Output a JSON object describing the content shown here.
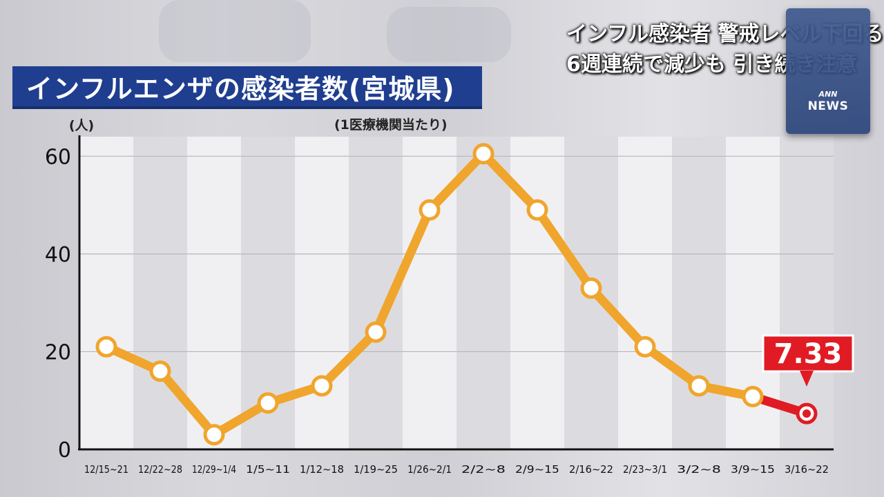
{
  "headline": {
    "line1": "インフル感染者 警戒レベル下回る",
    "line2": "6週連続で減少も 引き続き注意"
  },
  "logo": {
    "line1": "ANN",
    "line2": "NEWS"
  },
  "colors": {
    "banner": "#1f3e8f",
    "line": "#f0a52d",
    "highlight": "#e01b24"
  },
  "chart_data": {
    "type": "line",
    "title": "インフルエンザの感染者数(宮城県)",
    "subtitle": "(1医療機関当たり)",
    "ylabel": "(人)",
    "xlabel": "",
    "ylim": [
      0,
      64
    ],
    "yticks": [
      0,
      20,
      40,
      60
    ],
    "grid": true,
    "categories": [
      "12/15~21",
      "12/22~28",
      "12/29~1/4",
      "1/5~11",
      "1/12~18",
      "1/19~25",
      "1/26~2/1",
      "2/2~8",
      "2/9~15",
      "2/16~22",
      "2/23~3/1",
      "3/2~8",
      "3/9~15",
      "3/16~22"
    ],
    "values": [
      21,
      16,
      3,
      9.5,
      13,
      24,
      49,
      60.5,
      49,
      33,
      21,
      13,
      10.8,
      7.33
    ],
    "highlight": {
      "index": 13,
      "label": "7.33"
    }
  }
}
